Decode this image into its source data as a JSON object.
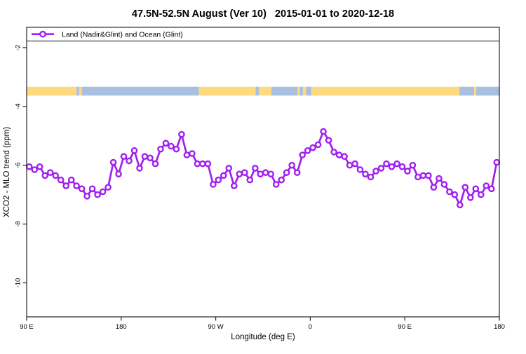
{
  "title": "47.5N-52.5N August (Ver 10)   2015-01-01 to 2020-12-18",
  "legend": {
    "label": "Land (Nadir&Glint) and Ocean (Glint)",
    "series_color": "#a020f0"
  },
  "chart_data": {
    "type": "line",
    "title": "47.5N-52.5N August (Ver 10)  2015-01-01 to 2020-12-18",
    "xlabel": "Longitude (deg E)",
    "ylabel": "XCO2 - MLO trend (ppm)",
    "grid": false,
    "legend_position": "top",
    "x_axis": {
      "range_deg": [
        90,
        540
      ],
      "ticks": [
        {
          "deg": 90,
          "label": "90 E"
        },
        {
          "deg": 180,
          "label": "180"
        },
        {
          "deg": 270,
          "label": "90 W"
        },
        {
          "deg": 360,
          "label": "0"
        },
        {
          "deg": 450,
          "label": "90 E"
        },
        {
          "deg": 540,
          "label": "180"
        }
      ]
    },
    "y_axis": {
      "range": [
        -11.155,
        -1.31
      ],
      "ticks": [
        {
          "value": -2,
          "label": "-2"
        },
        {
          "value": -4,
          "label": "-4"
        },
        {
          "value": -6,
          "label": "-6"
        },
        {
          "value": -8,
          "label": "-8"
        },
        {
          "value": -10,
          "label": "-10"
        }
      ]
    },
    "series": [
      {
        "name": "Land (Nadir&Glint) and Ocean (Glint)",
        "color": "#a020f0",
        "marker": "open-circle",
        "x_deg": [
          92.5,
          97.5,
          102.5,
          107.5,
          112.5,
          117.5,
          122.5,
          127.5,
          132.5,
          137.5,
          142.5,
          147.5,
          152.5,
          157.5,
          162.5,
          167.5,
          172.5,
          177.5,
          182.5,
          187.5,
          192.5,
          197.5,
          202.5,
          207.5,
          212.5,
          217.5,
          222.5,
          227.5,
          232.5,
          237.5,
          242.5,
          247.5,
          252.5,
          257.5,
          262.5,
          267.5,
          272.5,
          277.5,
          282.5,
          287.5,
          292.5,
          297.5,
          302.5,
          307.5,
          312.5,
          317.5,
          322.5,
          327.5,
          332.5,
          337.5,
          342.5,
          347.5,
          352.5,
          357.5,
          362.5,
          367.5,
          372.5,
          377.5,
          382.5,
          387.5,
          392.5,
          397.5,
          402.5,
          407.5,
          412.5,
          417.5,
          422.5,
          427.5,
          432.5,
          437.5,
          442.5,
          447.5,
          452.5,
          457.5,
          462.5,
          467.5,
          472.5,
          477.5,
          482.5,
          487.5,
          492.5,
          497.5,
          502.5,
          507.5,
          512.5,
          517.5,
          522.5,
          527.5,
          532.5,
          537.5
        ],
        "values": [
          -6.05,
          -6.15,
          -6.05,
          -6.35,
          -6.25,
          -6.35,
          -6.5,
          -6.7,
          -6.5,
          -6.7,
          -6.8,
          -7.05,
          -6.8,
          -7.0,
          -6.9,
          -6.75,
          -5.9,
          -6.3,
          -5.7,
          -5.85,
          -5.5,
          -6.1,
          -5.7,
          -5.75,
          -5.95,
          -5.45,
          -5.25,
          -5.35,
          -5.45,
          -4.95,
          -5.65,
          -5.6,
          -5.95,
          -5.95,
          -5.95,
          -6.65,
          -6.5,
          -6.35,
          -6.1,
          -6.7,
          -6.3,
          -6.25,
          -6.5,
          -6.1,
          -6.3,
          -6.25,
          -6.3,
          -6.65,
          -6.5,
          -6.25,
          -6.0,
          -6.25,
          -5.65,
          -5.5,
          -5.4,
          -5.3,
          -4.85,
          -5.15,
          -5.55,
          -5.65,
          -5.7,
          -6.0,
          -5.95,
          -6.15,
          -6.3,
          -6.4,
          -6.2,
          -6.1,
          -5.95,
          -6.05,
          -5.95,
          -6.05,
          -6.2,
          -6.0,
          -6.4,
          -6.35,
          -6.35,
          -6.75,
          -6.45,
          -6.65,
          -6.9,
          -7.0,
          -7.35,
          -6.75,
          -7.1,
          -6.8,
          -7.0,
          -6.7,
          -6.8,
          -5.9
        ]
      }
    ],
    "surface_band": {
      "value_top": -3.33,
      "value_bottom": -3.63,
      "land_color": "#ffd980",
      "ocean_color": "#a8bfe0",
      "segments": [
        {
          "from": 90,
          "to": 137.5,
          "surface": "land"
        },
        {
          "from": 137.5,
          "to": 140,
          "surface": "ocean"
        },
        {
          "from": 140,
          "to": 142.5,
          "surface": "land"
        },
        {
          "from": 142.5,
          "to": 254,
          "surface": "ocean"
        },
        {
          "from": 254,
          "to": 308,
          "surface": "land"
        },
        {
          "from": 308,
          "to": 311,
          "surface": "ocean"
        },
        {
          "from": 311,
          "to": 323,
          "surface": "land"
        },
        {
          "from": 323,
          "to": 348,
          "surface": "ocean"
        },
        {
          "from": 348,
          "to": 350,
          "surface": "land"
        },
        {
          "from": 350,
          "to": 353,
          "surface": "ocean"
        },
        {
          "from": 353,
          "to": 356,
          "surface": "land"
        },
        {
          "from": 356,
          "to": 361,
          "surface": "ocean"
        },
        {
          "from": 361,
          "to": 502,
          "surface": "land"
        },
        {
          "from": 502,
          "to": 516,
          "surface": "ocean"
        },
        {
          "from": 516,
          "to": 518,
          "surface": "land"
        },
        {
          "from": 518,
          "to": 540,
          "surface": "ocean"
        }
      ]
    },
    "frame_color": "#262626"
  }
}
